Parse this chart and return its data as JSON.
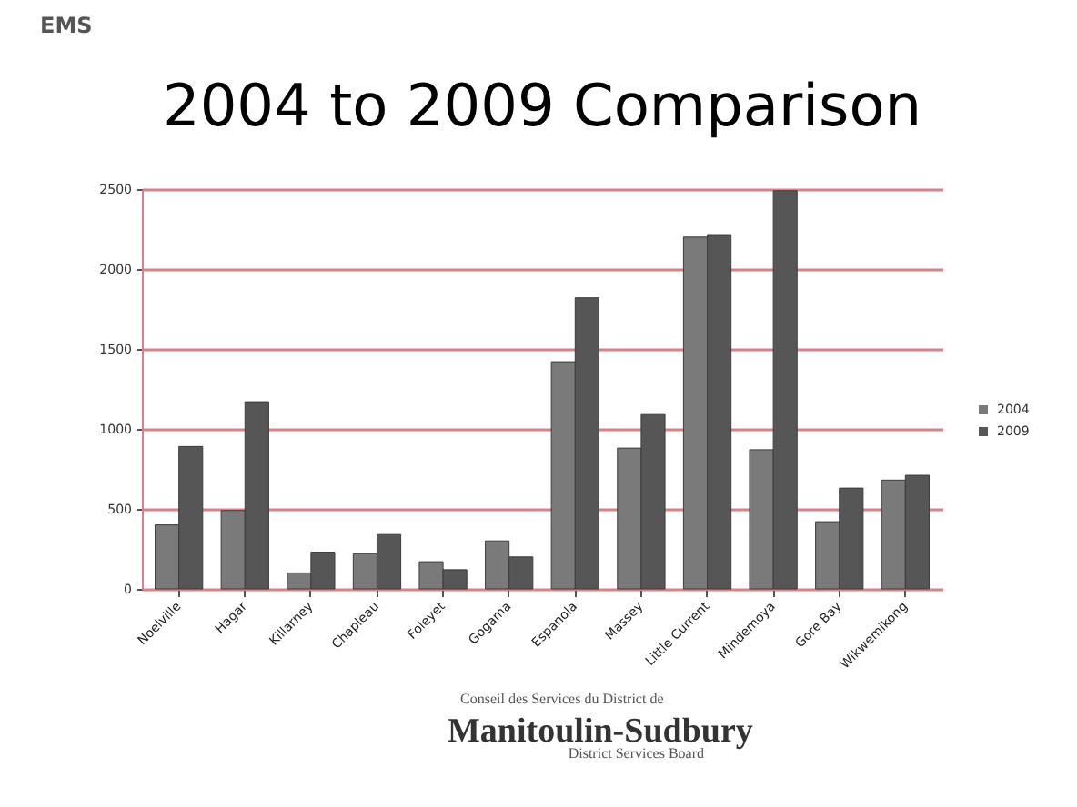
{
  "chart_data": {
    "type": "bar",
    "title": "2004 to 2009 Comparison",
    "categories": [
      "Noelville",
      "Hagar",
      "Killarney",
      "Chapleau",
      "Foleyet",
      "Gogama",
      "Espanola",
      "Massey",
      "Little Current",
      "Mindemoya",
      "Gore Bay",
      "Wikwemikong"
    ],
    "series": [
      {
        "name": "2004",
        "color": "#7a7a7a",
        "values": [
          400,
          490,
          100,
          220,
          170,
          300,
          1420,
          880,
          2200,
          870,
          420,
          680
        ]
      },
      {
        "name": "2009",
        "color": "#565656",
        "values": [
          890,
          1170,
          230,
          340,
          120,
          200,
          1820,
          1090,
          2210,
          2490,
          630,
          710
        ]
      }
    ],
    "ylim": [
      0,
      2500
    ],
    "yticks": [
      0,
      500,
      1000,
      1500,
      2000,
      2500
    ],
    "grid": "y",
    "legend": "right",
    "annotations": [
      "EMS",
      "Conseil des Services du District de",
      "Manitoulin-Sudbury",
      "District Services Board"
    ]
  }
}
